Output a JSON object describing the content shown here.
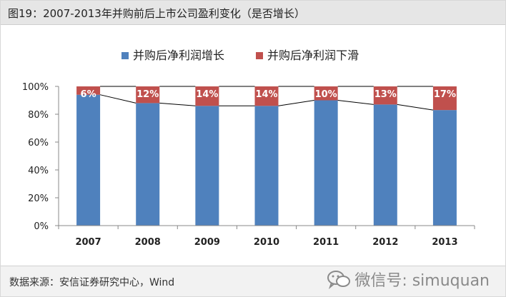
{
  "header": {
    "title": "图19：2007-2013年并购前后上市公司盈利变化（是否增长）"
  },
  "footer": {
    "source": "数据来源：安信证券研究中心，Wind",
    "watermark_text": "微信号: simuquan",
    "watermark_icon": "wechat-icon"
  },
  "colors": {
    "growth": "#4f81bd",
    "decline": "#c0504d",
    "line": "#000000"
  },
  "chart_data": {
    "type": "bar",
    "stacked": true,
    "categories": [
      "2007",
      "2008",
      "2009",
      "2010",
      "2011",
      "2012",
      "2013"
    ],
    "series": [
      {
        "name": "并购后净利润增长",
        "values": [
          94,
          88,
          86,
          86,
          90,
          87,
          83
        ]
      },
      {
        "name": "并购后净利润下滑",
        "values": [
          6,
          12,
          14,
          14,
          10,
          13,
          17
        ]
      }
    ],
    "data_labels": [
      "6%",
      "12%",
      "14%",
      "14%",
      "10%",
      "13%",
      "17%"
    ],
    "y_ticks": [
      "0%",
      "20%",
      "40%",
      "60%",
      "80%",
      "100%"
    ],
    "ylim": [
      0,
      100
    ],
    "legend_position": "top",
    "grid": false,
    "title": "",
    "xlabel": "",
    "ylabel": ""
  }
}
